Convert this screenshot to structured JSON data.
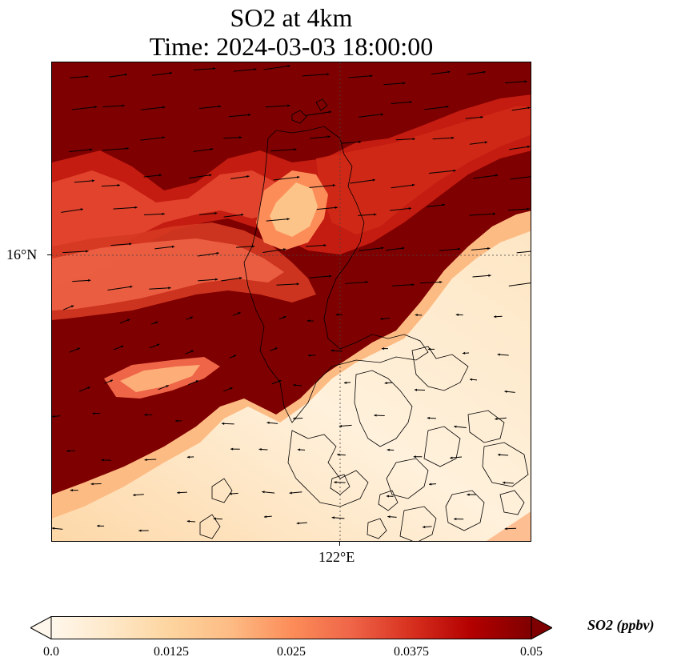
{
  "title": {
    "line1": "SO2 at 4km",
    "line2": "Time: 2024-03-03 18:00:00"
  },
  "axes": {
    "latitude_label": "16°N",
    "longitude_label": "122°E"
  },
  "colorbar": {
    "label": "SO2 (ppbv)",
    "ticks": [
      "0.0",
      "0.0125",
      "0.025",
      "0.0375",
      "0.05"
    ],
    "range": [
      0.0,
      0.05
    ],
    "colors": [
      "#fff7ec",
      "#fee8c8",
      "#fdd49e",
      "#fdbb84",
      "#fc8d59",
      "#ef6548",
      "#d7301f",
      "#b30000",
      "#7f0000"
    ],
    "extend": "both"
  },
  "map": {
    "field": "SO2",
    "level": "4km",
    "colormap": "OrRd",
    "high_color": "#7f0000",
    "low_color": "#fff1dc",
    "wind_vector_color": "#000000",
    "coastline_color": "#000000",
    "gridline_style": "dotted"
  }
}
